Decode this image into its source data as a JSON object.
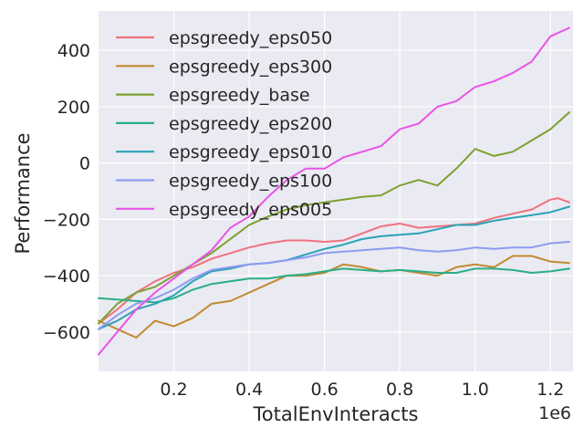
{
  "chart_data": {
    "type": "line",
    "title": "",
    "xlabel": "TotalEnvInteracts",
    "ylabel": "Performance",
    "x_offset_label": "1e6",
    "xlim": [
      0.0,
      1.26
    ],
    "ylim": [
      -740,
      540
    ],
    "xticks": [
      0.2,
      0.4,
      0.6,
      0.8,
      1.0,
      1.2
    ],
    "xtick_labels": [
      "0.2",
      "0.4",
      "0.6",
      "0.8",
      "1.0",
      "1.2"
    ],
    "yticks": [
      -600,
      -400,
      -200,
      0,
      200,
      400
    ],
    "ytick_labels": [
      "−600",
      "−400",
      "−200",
      "0",
      "200",
      "400"
    ],
    "grid": true,
    "legend_position": "upper-left",
    "series": [
      {
        "name": "epsgreedy_eps050",
        "color": "#f0717e",
        "x": [
          0.0,
          0.05,
          0.1,
          0.15,
          0.2,
          0.25,
          0.3,
          0.35,
          0.4,
          0.45,
          0.5,
          0.55,
          0.6,
          0.65,
          0.7,
          0.75,
          0.8,
          0.85,
          0.9,
          0.95,
          1.0,
          1.05,
          1.1,
          1.15,
          1.2,
          1.22,
          1.25
        ],
        "y": [
          -570,
          -520,
          -460,
          -420,
          -390,
          -370,
          -340,
          -320,
          -300,
          -285,
          -275,
          -275,
          -280,
          -275,
          -250,
          -225,
          -215,
          -230,
          -225,
          -220,
          -215,
          -195,
          -180,
          -165,
          -130,
          -125,
          -140
        ]
      },
      {
        "name": "epsgreedy_eps300",
        "color": "#c18a30",
        "x": [
          0.0,
          0.05,
          0.1,
          0.15,
          0.2,
          0.25,
          0.3,
          0.35,
          0.4,
          0.45,
          0.5,
          0.55,
          0.6,
          0.65,
          0.7,
          0.75,
          0.8,
          0.85,
          0.9,
          0.95,
          1.0,
          1.05,
          1.1,
          1.15,
          1.2,
          1.25
        ],
        "y": [
          -560,
          -590,
          -620,
          -560,
          -580,
          -550,
          -500,
          -490,
          -460,
          -430,
          -400,
          -400,
          -390,
          -360,
          -370,
          -385,
          -380,
          -390,
          -400,
          -370,
          -360,
          -370,
          -330,
          -330,
          -350,
          -355
        ]
      },
      {
        "name": "epsgreedy_base",
        "color": "#7ba22f",
        "x": [
          0.0,
          0.05,
          0.1,
          0.15,
          0.2,
          0.25,
          0.3,
          0.35,
          0.4,
          0.45,
          0.5,
          0.55,
          0.6,
          0.65,
          0.7,
          0.75,
          0.8,
          0.85,
          0.9,
          0.95,
          1.0,
          1.05,
          1.1,
          1.15,
          1.2,
          1.25
        ],
        "y": [
          -570,
          -500,
          -460,
          -440,
          -400,
          -360,
          -320,
          -270,
          -220,
          -190,
          -165,
          -150,
          -140,
          -130,
          -120,
          -115,
          -80,
          -60,
          -80,
          -20,
          50,
          25,
          40,
          80,
          120,
          180
        ]
      },
      {
        "name": "epsgreedy_eps200",
        "color": "#2aae88",
        "x": [
          0.0,
          0.05,
          0.1,
          0.15,
          0.2,
          0.25,
          0.3,
          0.35,
          0.4,
          0.45,
          0.5,
          0.55,
          0.6,
          0.65,
          0.7,
          0.75,
          0.8,
          0.85,
          0.9,
          0.95,
          1.0,
          1.05,
          1.1,
          1.15,
          1.2,
          1.25
        ],
        "y": [
          -480,
          -485,
          -490,
          -495,
          -480,
          -450,
          -430,
          -420,
          -410,
          -410,
          -400,
          -395,
          -385,
          -375,
          -380,
          -385,
          -380,
          -385,
          -390,
          -390,
          -375,
          -375,
          -380,
          -390,
          -385,
          -375
        ]
      },
      {
        "name": "epsgreedy_eps010",
        "color": "#2ba3b6",
        "x": [
          0.0,
          0.05,
          0.1,
          0.15,
          0.2,
          0.25,
          0.3,
          0.35,
          0.4,
          0.45,
          0.5,
          0.55,
          0.6,
          0.65,
          0.7,
          0.75,
          0.8,
          0.85,
          0.9,
          0.95,
          1.0,
          1.05,
          1.1,
          1.15,
          1.2,
          1.25
        ],
        "y": [
          -590,
          -560,
          -520,
          -500,
          -470,
          -420,
          -385,
          -375,
          -360,
          -355,
          -345,
          -325,
          -305,
          -290,
          -270,
          -260,
          -255,
          -250,
          -235,
          -220,
          -220,
          -205,
          -195,
          -185,
          -175,
          -155
        ]
      },
      {
        "name": "epsgreedy_eps100",
        "color": "#8c9cf0",
        "x": [
          0.0,
          0.05,
          0.1,
          0.15,
          0.2,
          0.25,
          0.3,
          0.35,
          0.4,
          0.45,
          0.5,
          0.55,
          0.6,
          0.65,
          0.7,
          0.75,
          0.8,
          0.85,
          0.9,
          0.95,
          1.0,
          1.05,
          1.1,
          1.15,
          1.2,
          1.25
        ],
        "y": [
          -590,
          -540,
          -500,
          -480,
          -450,
          -410,
          -380,
          -370,
          -360,
          -355,
          -345,
          -335,
          -320,
          -315,
          -310,
          -305,
          -300,
          -310,
          -315,
          -310,
          -300,
          -305,
          -300,
          -300,
          -285,
          -280
        ]
      },
      {
        "name": "epsgreedy_eps005",
        "color": "#e954e6",
        "x": [
          0.0,
          0.05,
          0.1,
          0.15,
          0.2,
          0.25,
          0.3,
          0.35,
          0.4,
          0.45,
          0.5,
          0.55,
          0.6,
          0.65,
          0.7,
          0.75,
          0.8,
          0.85,
          0.9,
          0.95,
          1.0,
          1.05,
          1.1,
          1.15,
          1.2,
          1.25
        ],
        "y": [
          -680,
          -600,
          -520,
          -460,
          -410,
          -360,
          -310,
          -230,
          -190,
          -120,
          -60,
          -20,
          -20,
          20,
          40,
          60,
          120,
          140,
          200,
          220,
          270,
          290,
          320,
          360,
          450,
          480
        ]
      }
    ]
  }
}
